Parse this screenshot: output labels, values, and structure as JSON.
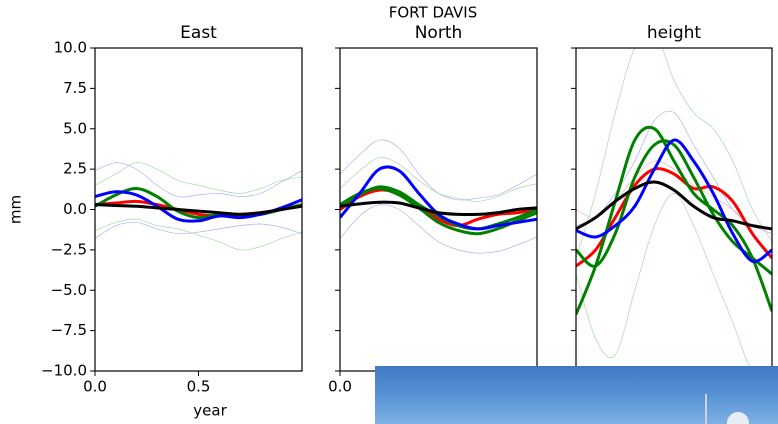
{
  "suptitle": "FORT DAVIS",
  "chart_data": [
    {
      "type": "line",
      "title": "East",
      "xlabel": "year",
      "ylabel": "mm",
      "xlim": [
        0,
        1
      ],
      "ylim": [
        -10,
        10
      ],
      "xticks": [
        {
          "value": 0,
          "label": "0.0"
        },
        {
          "value": 0.5,
          "label": "0.5"
        }
      ],
      "yticks": [
        {
          "value": 10,
          "label": "10.0"
        },
        {
          "value": 7.5,
          "label": "7.5"
        },
        {
          "value": 5,
          "label": "5.0"
        },
        {
          "value": 2.5,
          "label": "2.5"
        },
        {
          "value": 0,
          "label": "0.0"
        },
        {
          "value": -2.5,
          "label": "−2.5"
        },
        {
          "value": -5,
          "label": "−5.0"
        },
        {
          "value": -7.5,
          "label": "−7.5"
        },
        {
          "value": -10,
          "label": "−10.0"
        }
      ],
      "show_ytick_labels": true,
      "x": [
        0,
        0.1,
        0.2,
        0.3,
        0.4,
        0.5,
        0.6,
        0.7,
        0.8,
        0.9,
        1.0
      ],
      "series": [
        {
          "color": "#b0b0f0",
          "linewidth": 0.7,
          "values": [
            2.4,
            2.9,
            2.5,
            1.5,
            0.8,
            0.9,
            1,
            0.8,
            1,
            1.7,
            2.4
          ]
        },
        {
          "color": "#b0b0f0",
          "linewidth": 0.7,
          "values": [
            -1.8,
            -1.0,
            -0.8,
            -1.2,
            -1.5,
            -1.4,
            -1.2,
            -1,
            -0.9,
            -1.1,
            -1.5
          ]
        },
        {
          "color": "#a8d8a8",
          "linewidth": 0.7,
          "values": [
            1.5,
            2.2,
            2.9,
            2.5,
            1.8,
            1.5,
            1.2,
            1.0,
            1.3,
            1.8,
            2.0
          ]
        },
        {
          "color": "#a8d8a8",
          "linewidth": 0.7,
          "values": [
            -1.3,
            -0.8,
            -0.6,
            -1,
            -1.2,
            -1.6,
            -2.0,
            -2.5,
            -2.3,
            -1.8,
            -1.4
          ]
        },
        {
          "color": "#ff0000",
          "linewidth": 3,
          "values": [
            0.3,
            0.4,
            0.5,
            0.3,
            0,
            -0.3,
            -0.4,
            -0.3,
            -0.2,
            0,
            0.3
          ]
        },
        {
          "color": "#008000",
          "linewidth": 3,
          "values": [
            0.2,
            0.9,
            1.3,
            0.8,
            -0.1,
            -0.5,
            -0.3,
            -0.3,
            -0.3,
            0,
            0.3
          ]
        },
        {
          "color": "#0000ff",
          "linewidth": 3,
          "values": [
            0.8,
            1.1,
            0.9,
            0.2,
            -0.6,
            -0.7,
            -0.4,
            -0.5,
            -0.3,
            0.1,
            0.6
          ]
        },
        {
          "color": "#000000",
          "linewidth": 3,
          "values": [
            0.3,
            0.25,
            0.2,
            0.1,
            0,
            -0.1,
            -0.2,
            -0.3,
            -0.2,
            0,
            0.2
          ]
        }
      ]
    },
    {
      "type": "line",
      "title": "North",
      "xlim": [
        0,
        1
      ],
      "ylim": [
        -10,
        10
      ],
      "xticks": [
        {
          "value": 0,
          "label": "0.0"
        }
      ],
      "yticks": [
        10,
        7.5,
        5,
        2.5,
        0,
        -2.5,
        -5,
        -7.5,
        -10
      ],
      "show_ytick_labels": false,
      "x": [
        0,
        0.1,
        0.2,
        0.3,
        0.4,
        0.5,
        0.6,
        0.7,
        0.8,
        0.9,
        1.0
      ],
      "series": [
        {
          "color": "#b0b0f0",
          "linewidth": 0.7,
          "values": [
            2.2,
            3.4,
            4.3,
            3.8,
            2.2,
            1.0,
            0.6,
            0.7,
            0.9,
            1.5,
            2.2
          ]
        },
        {
          "color": "#b0b0f0",
          "linewidth": 0.7,
          "values": [
            -1.8,
            -0.4,
            0.3,
            0,
            -1,
            -2,
            -2.5,
            -2.7,
            -2.6,
            -2.2,
            -1.7
          ]
        },
        {
          "color": "#a8d8a8",
          "linewidth": 0.7,
          "values": [
            1.3,
            2.4,
            3.2,
            2.8,
            1.8,
            1,
            0.7,
            0.5,
            0.8,
            1.3,
            1.6
          ]
        },
        {
          "color": "#ff0000",
          "linewidth": 3,
          "values": [
            0,
            0.8,
            1.2,
            1.0,
            0.2,
            -0.6,
            -1.0,
            -0.6,
            -0.3,
            -0.2,
            0
          ]
        },
        {
          "color": "#008000",
          "linewidth": 3,
          "values": [
            0.2,
            0.9,
            1.4,
            1.1,
            0.3,
            -0.4,
            -1,
            -1.2,
            -0.9,
            -0.5,
            0
          ]
        },
        {
          "color": "#008000",
          "linewidth": 3,
          "values": [
            0.3,
            1.0,
            1.3,
            0.9,
            0.1,
            -0.8,
            -1.3,
            -1.5,
            -1.2,
            -0.7,
            -0.2
          ]
        },
        {
          "color": "#0000ff",
          "linewidth": 3,
          "values": [
            -0.5,
            1.0,
            2.5,
            2.4,
            1.0,
            -0.3,
            -0.9,
            -1.2,
            -1.0,
            -0.8,
            -0.6
          ]
        },
        {
          "color": "#000000",
          "linewidth": 3,
          "values": [
            0.2,
            0.35,
            0.45,
            0.4,
            0.1,
            -0.2,
            -0.3,
            -0.3,
            -0.2,
            0,
            0.1
          ]
        }
      ]
    },
    {
      "type": "line",
      "title": "height",
      "xlim": [
        0,
        1
      ],
      "ylim": [
        -10,
        10
      ],
      "yticks": [
        10,
        7.5,
        5,
        2.5,
        0,
        -2.5,
        -5,
        -7.5,
        -10
      ],
      "show_ytick_labels": false,
      "x": [
        0,
        0.1,
        0.2,
        0.3,
        0.4,
        0.5,
        0.6,
        0.7,
        0.8,
        0.9,
        1.0
      ],
      "series": [
        {
          "color": "#a8d8a8",
          "linewidth": 0.7,
          "values": [
            -3,
            1,
            6,
            10,
            11,
            8,
            6,
            5,
            3,
            0,
            -2
          ]
        },
        {
          "color": "#a8d8a8",
          "linewidth": 0.7,
          "values": [
            -4,
            -8,
            -9,
            -5,
            -1,
            1,
            -1,
            -4,
            -7,
            -10,
            -10
          ]
        },
        {
          "color": "#b0b0f0",
          "linewidth": 0.7,
          "values": [
            -1,
            -0.5,
            1,
            3,
            5.5,
            6,
            4,
            2,
            0,
            -1,
            -1.5
          ]
        },
        {
          "color": "#f0b0c0",
          "linewidth": 0.7,
          "values": [
            0,
            -0.5,
            0.5,
            2,
            3,
            2.5,
            1.5,
            0.8,
            0,
            -1,
            -1.5
          ]
        },
        {
          "color": "#ff0000",
          "linewidth": 3,
          "values": [
            -3.5,
            -2.5,
            -0.5,
            1.5,
            2.5,
            2.2,
            1.3,
            1.4,
            0.5,
            -1.5,
            -3
          ]
        },
        {
          "color": "#008000",
          "linewidth": 3,
          "values": [
            -6.5,
            -3.5,
            0.5,
            4.3,
            5,
            3,
            1,
            0,
            -1,
            -3,
            -6.3
          ]
        },
        {
          "color": "#008000",
          "linewidth": 3,
          "values": [
            -2.5,
            -3.5,
            -1.5,
            2.0,
            4.0,
            4.0,
            2.0,
            -0.3,
            -2,
            -3,
            -4
          ]
        },
        {
          "color": "#0000ff",
          "linewidth": 3,
          "values": [
            -1.3,
            -1.7,
            -1.0,
            0.2,
            2.5,
            4.3,
            3.0,
            1.0,
            -1.5,
            -3.2,
            -2.5
          ]
        },
        {
          "color": "#000000",
          "linewidth": 3,
          "values": [
            -1.2,
            -0.5,
            0.5,
            1.3,
            1.7,
            1.2,
            0.2,
            -0.5,
            -0.7,
            -1,
            -1.2
          ]
        }
      ]
    }
  ]
}
